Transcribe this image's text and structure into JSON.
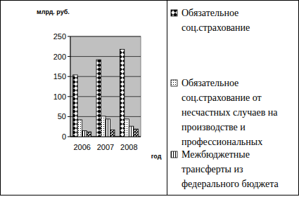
{
  "chart_data": {
    "type": "bar",
    "y_label": "млрд. руб.",
    "x_label": "год",
    "categories": [
      "2006",
      "2007",
      "2008"
    ],
    "series": [
      {
        "name": "Обязательное соц.страхование",
        "color": "#000000",
        "values": [
          154,
          192,
          218
        ]
      },
      {
        "name": "Обязательное соц.страхование от несчастных случаев на производстве и профессиональных",
        "color": "#000000",
        "values": [
          42,
          51,
          44
        ]
      },
      {
        "name": "Межбюджетные трансферты из федерального бюджета",
        "color": "#000000",
        "values": [
          15,
          44,
          26
        ]
      },
      {
        "color": "#000000",
        "values": [
          12,
          17,
          19
        ]
      }
    ],
    "ylim": [
      0,
      250
    ],
    "yticks": [
      0,
      50,
      100,
      150,
      200,
      250
    ],
    "grid": true,
    "legend": "right"
  }
}
